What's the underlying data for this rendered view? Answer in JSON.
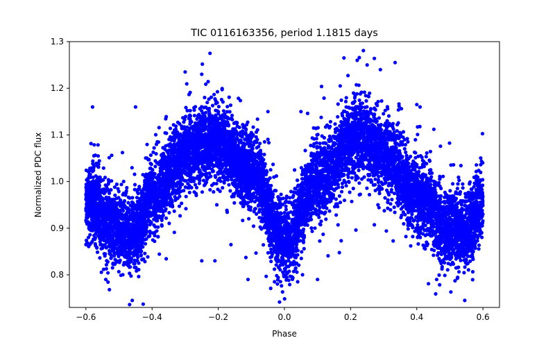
{
  "chart_data": {
    "type": "scatter",
    "title": "TIC 0116163356, period 1.1815 days",
    "xlabel": "Phase",
    "ylabel": "Normalized PDC flux",
    "xlim": [
      -0.65,
      0.65
    ],
    "ylim": [
      0.73,
      1.3
    ],
    "xticks": [
      -0.6,
      -0.4,
      -0.2,
      0.0,
      0.2,
      0.4,
      0.6
    ],
    "xtick_labels": [
      "−0.6",
      "−0.4",
      "−0.2",
      "0.0",
      "0.2",
      "0.4",
      "0.6"
    ],
    "yticks": [
      0.8,
      0.9,
      1.0,
      1.1,
      1.2,
      1.3
    ],
    "ytick_labels": [
      "0.8",
      "0.9",
      "1.0",
      "1.1",
      "1.2",
      "1.3"
    ],
    "grid": false,
    "marker_color": "#0000ff",
    "series": [
      {
        "name": "flux",
        "phase_range": [
          -0.6,
          0.6
        ],
        "model_profile": [
          {
            "phase": -0.6,
            "flux": 0.96
          },
          {
            "phase": -0.5,
            "flux": 0.9
          },
          {
            "phase": -0.45,
            "flux": 0.89
          },
          {
            "phase": -0.4,
            "flux": 0.97
          },
          {
            "phase": -0.3,
            "flux": 1.06
          },
          {
            "phase": -0.22,
            "flux": 1.09
          },
          {
            "phase": -0.1,
            "flux": 1.02
          },
          {
            "phase": 0.0,
            "flux": 0.87
          },
          {
            "phase": 0.1,
            "flux": 1.0
          },
          {
            "phase": 0.22,
            "flux": 1.1
          },
          {
            "phase": 0.3,
            "flux": 1.06
          },
          {
            "phase": 0.4,
            "flux": 0.97
          },
          {
            "phase": 0.5,
            "flux": 0.9
          },
          {
            "phase": 0.55,
            "flux": 0.89
          },
          {
            "phase": 0.6,
            "flux": 0.96
          }
        ],
        "outliers": [
          {
            "x": -0.225,
            "y": 1.275
          },
          {
            "x": -0.3,
            "y": 1.235
          },
          {
            "x": -0.25,
            "y": 1.23
          },
          {
            "x": 0.18,
            "y": 1.265
          },
          {
            "x": 0.22,
            "y": 1.26
          },
          {
            "x": 0.25,
            "y": 1.25
          },
          {
            "x": 0.29,
            "y": 1.24
          },
          {
            "x": -0.46,
            "y": 0.745
          },
          {
            "x": 0.545,
            "y": 0.745
          },
          {
            "x": -0.58,
            "y": 1.16
          },
          {
            "x": -0.45,
            "y": 1.16
          },
          {
            "x": 0.41,
            "y": 1.16
          },
          {
            "x": 0.4,
            "y": 1.165
          },
          {
            "x": -0.05,
            "y": 1.15
          },
          {
            "x": 0.05,
            "y": 1.15
          },
          {
            "x": -0.11,
            "y": 0.79
          },
          {
            "x": 0.1,
            "y": 0.79
          },
          {
            "x": -0.54,
            "y": 0.79
          },
          {
            "x": 0.46,
            "y": 0.79
          },
          {
            "x": -0.25,
            "y": 0.83
          },
          {
            "x": -0.21,
            "y": 0.83
          },
          {
            "x": -0.03,
            "y": 0.785
          },
          {
            "x": 0.04,
            "y": 0.785
          }
        ]
      }
    ]
  }
}
